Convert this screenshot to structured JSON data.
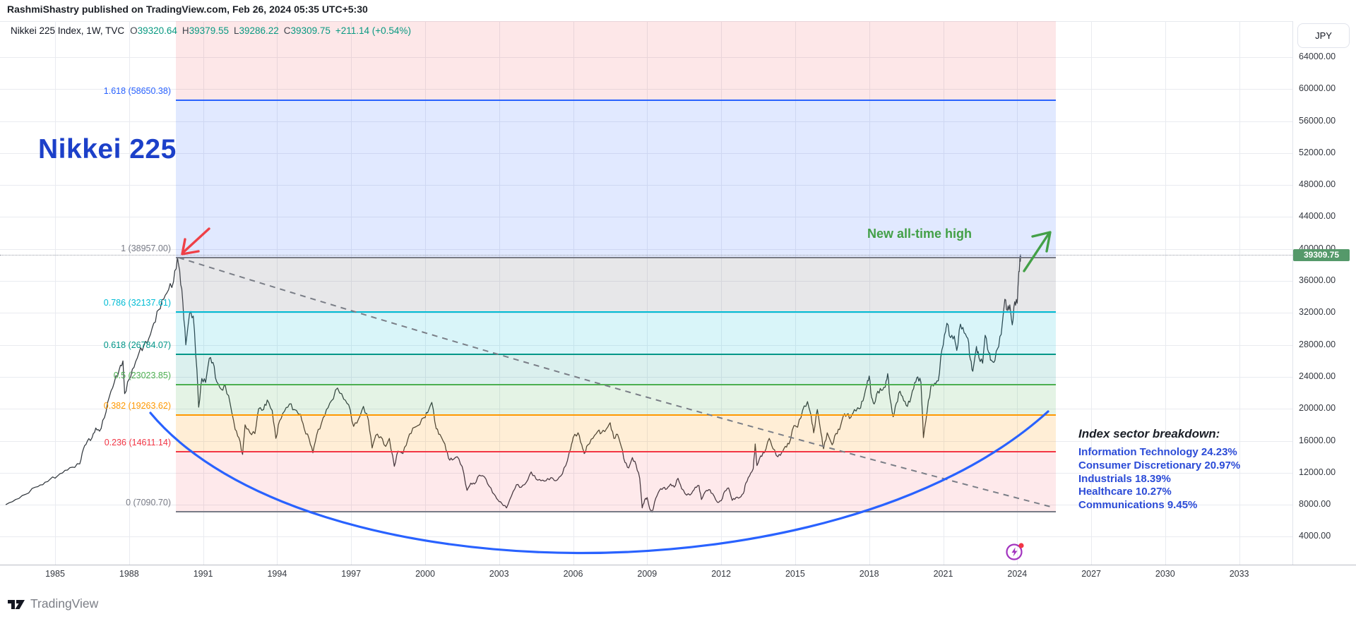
{
  "publish_bar": {
    "text": "RashmiShastry published on TradingView.com, Feb 26, 2024 05:35 UTC+5:30"
  },
  "legend": {
    "display": "Nikkei 225 Index, 1W, TVC",
    "ohlc": [
      {
        "k": "O",
        "v": "39320.64"
      },
      {
        "k": "H",
        "v": "39379.55"
      },
      {
        "k": "L",
        "v": "39286.22"
      },
      {
        "k": "C",
        "v": "39309.75"
      }
    ],
    "change": "+211.14 (+0.54%)",
    "up_color": "#089981"
  },
  "annotations": {
    "big_title": {
      "text": "Nikkei 225",
      "color": "#1c40c9"
    },
    "new_ath": {
      "text": "New all-time high",
      "color": "#43a047"
    },
    "sector_block": {
      "title": "Index sector breakdown:",
      "items": [
        "Information Technology 24.23%",
        "Consumer Discretionary 20.97%",
        "Industrials 18.39%",
        "Healthcare 10.27%",
        "Communications 9.45%"
      ],
      "color": "#2b4bd7"
    }
  },
  "price_scale": {
    "currency": "JPY",
    "last_price": "39309.75",
    "last_price_bg": "#55996a"
  },
  "footer": {
    "brand": "TradingView"
  },
  "chart_data": {
    "type": "line",
    "title": "Nikkei 225 Index, 1W, TVC",
    "x_axis": {
      "unit": "year",
      "ticks": [
        1985,
        1988,
        1991,
        1994,
        1997,
        2000,
        2003,
        2006,
        2009,
        2012,
        2015,
        2018,
        2021,
        2024,
        2027,
        2030,
        2033
      ]
    },
    "y_axis": {
      "unit": "JPY",
      "ticks": [
        64000,
        60000,
        56000,
        52000,
        48000,
        44000,
        40000,
        36000,
        32000,
        28000,
        24000,
        20000,
        16000,
        12000,
        8000,
        4000
      ],
      "visible_range": [
        450,
        68500
      ],
      "grid": true
    },
    "last_bar": {
      "open": 39320.64,
      "high": 39379.55,
      "low": 39286.22,
      "close": 39309.75,
      "change": 211.14,
      "change_pct": 0.54
    },
    "current_price_line": 39309.75,
    "fib_retracement": {
      "from": {
        "year": 1989.96,
        "price": 38957.0
      },
      "to": {
        "year": 2008.8,
        "price": 7090.7
      },
      "extends_to_year": 2025.6,
      "levels": [
        {
          "ratio": "1.618",
          "price": 58650.38,
          "label": "1.618 (58650.38)",
          "color": "#2962ff"
        },
        {
          "ratio": "1",
          "price": 38957.0,
          "label": "1 (38957.00)",
          "color": "#787b86"
        },
        {
          "ratio": "0.786",
          "price": 32137.61,
          "label": "0.786 (32137.61)",
          "color": "#00bcd4"
        },
        {
          "ratio": "0.618",
          "price": 26784.07,
          "label": "0.618 (26784.07)",
          "color": "#009688"
        },
        {
          "ratio": "0.5",
          "price": 23023.85,
          "label": "0.5 (23023.85)",
          "color": "#4caf50"
        },
        {
          "ratio": "0.382",
          "price": 19263.62,
          "label": "0.382 (19263.62)",
          "color": "#ff9800"
        },
        {
          "ratio": "0.236",
          "price": 14611.14,
          "label": "0.236 (14611.14)",
          "color": "#f23645"
        },
        {
          "ratio": "0",
          "price": 7090.7,
          "label": "0 (7090.70)",
          "color": "#787b86"
        }
      ],
      "band_colors": [
        "rgba(242,54,69,0.12)",
        "rgba(41,98,255,0.14)",
        "rgba(120,123,134,0.18)",
        "rgba(0,188,212,0.15)",
        "rgba(0,150,136,0.14)",
        "rgba(76,175,80,0.15)",
        "rgba(255,152,0,0.16)",
        "rgba(242,54,69,0.11)"
      ]
    },
    "series": [
      {
        "name": "Nikkei 225 weekly",
        "points": [
          [
            1983.0,
            8000
          ],
          [
            1983.4,
            8650
          ],
          [
            1983.8,
            9300
          ],
          [
            1984.2,
            10200
          ],
          [
            1984.5,
            10500
          ],
          [
            1984.8,
            11200
          ],
          [
            1985.1,
            11600
          ],
          [
            1985.4,
            12300
          ],
          [
            1985.7,
            12700
          ],
          [
            1986.0,
            13100
          ],
          [
            1986.15,
            15000
          ],
          [
            1986.3,
            15900
          ],
          [
            1986.5,
            16400
          ],
          [
            1986.65,
            17600
          ],
          [
            1986.8,
            17200
          ],
          [
            1987.0,
            18900
          ],
          [
            1987.2,
            21500
          ],
          [
            1987.4,
            23300
          ],
          [
            1987.6,
            24900
          ],
          [
            1987.75,
            26000
          ],
          [
            1987.82,
            21900
          ],
          [
            1988.0,
            23700
          ],
          [
            1988.2,
            25200
          ],
          [
            1988.4,
            27000
          ],
          [
            1988.6,
            27900
          ],
          [
            1988.8,
            28800
          ],
          [
            1989.0,
            30700
          ],
          [
            1989.2,
            32400
          ],
          [
            1989.4,
            33700
          ],
          [
            1989.6,
            34900
          ],
          [
            1989.8,
            35900
          ],
          [
            1989.96,
            38957
          ],
          [
            1990.05,
            37300
          ],
          [
            1990.18,
            33300
          ],
          [
            1990.3,
            28000
          ],
          [
            1990.45,
            31900
          ],
          [
            1990.6,
            31600
          ],
          [
            1990.75,
            24900
          ],
          [
            1990.82,
            20200
          ],
          [
            1990.95,
            23800
          ],
          [
            1991.1,
            23300
          ],
          [
            1991.25,
            26300
          ],
          [
            1991.4,
            25800
          ],
          [
            1991.55,
            23400
          ],
          [
            1991.75,
            22400
          ],
          [
            1991.9,
            22900
          ],
          [
            1992.1,
            20600
          ],
          [
            1992.3,
            17400
          ],
          [
            1992.45,
            16400
          ],
          [
            1992.6,
            14300
          ],
          [
            1992.7,
            18000
          ],
          [
            1992.9,
            17000
          ],
          [
            1993.1,
            16900
          ],
          [
            1993.25,
            20000
          ],
          [
            1993.45,
            19900
          ],
          [
            1993.6,
            21100
          ],
          [
            1993.8,
            19800
          ],
          [
            1993.95,
            16300
          ],
          [
            1994.1,
            18500
          ],
          [
            1994.3,
            19700
          ],
          [
            1994.5,
            20600
          ],
          [
            1994.7,
            19900
          ],
          [
            1994.95,
            19300
          ],
          [
            1995.1,
            17500
          ],
          [
            1995.3,
            16200
          ],
          [
            1995.45,
            14500
          ],
          [
            1995.6,
            16700
          ],
          [
            1995.8,
            18200
          ],
          [
            1996.0,
            19900
          ],
          [
            1996.2,
            21000
          ],
          [
            1996.45,
            22600
          ],
          [
            1996.7,
            21200
          ],
          [
            1996.9,
            20500
          ],
          [
            1997.1,
            17800
          ],
          [
            1997.3,
            18700
          ],
          [
            1997.5,
            20300
          ],
          [
            1997.7,
            18600
          ],
          [
            1997.85,
            15100
          ],
          [
            1998.0,
            16700
          ],
          [
            1998.2,
            16500
          ],
          [
            1998.4,
            15300
          ],
          [
            1998.55,
            16300
          ],
          [
            1998.75,
            12800
          ],
          [
            1998.9,
            14700
          ],
          [
            1999.1,
            14400
          ],
          [
            1999.3,
            16200
          ],
          [
            1999.5,
            17600
          ],
          [
            1999.7,
            17900
          ],
          [
            1999.95,
            18900
          ],
          [
            2000.1,
            19500
          ],
          [
            2000.27,
            20800
          ],
          [
            2000.45,
            17500
          ],
          [
            2000.6,
            16800
          ],
          [
            2000.8,
            15600
          ],
          [
            2000.95,
            13800
          ],
          [
            2001.1,
            13600
          ],
          [
            2001.3,
            14000
          ],
          [
            2001.5,
            12800
          ],
          [
            2001.7,
            9800
          ],
          [
            2001.85,
            10700
          ],
          [
            2002.0,
            10600
          ],
          [
            2002.2,
            11700
          ],
          [
            2002.4,
            11500
          ],
          [
            2002.6,
            10300
          ],
          [
            2002.8,
            9300
          ],
          [
            2002.95,
            8600
          ],
          [
            2003.1,
            8200
          ],
          [
            2003.3,
            7600
          ],
          [
            2003.5,
            9100
          ],
          [
            2003.7,
            10500
          ],
          [
            2003.9,
            10200
          ],
          [
            2004.1,
            10800
          ],
          [
            2004.3,
            12100
          ],
          [
            2004.5,
            11200
          ],
          [
            2004.7,
            11000
          ],
          [
            2004.9,
            11000
          ],
          [
            2005.1,
            11400
          ],
          [
            2005.3,
            11000
          ],
          [
            2005.5,
            11600
          ],
          [
            2005.7,
            12900
          ],
          [
            2005.9,
            15000
          ],
          [
            2006.0,
            16400
          ],
          [
            2006.2,
            17000
          ],
          [
            2006.35,
            15500
          ],
          [
            2006.45,
            14400
          ],
          [
            2006.6,
            15500
          ],
          [
            2006.8,
            16300
          ],
          [
            2007.0,
            17200
          ],
          [
            2007.15,
            17000
          ],
          [
            2007.35,
            17500
          ],
          [
            2007.5,
            18260
          ],
          [
            2007.65,
            16300
          ],
          [
            2007.8,
            16800
          ],
          [
            2007.95,
            15300
          ],
          [
            2008.1,
            13300
          ],
          [
            2008.25,
            12600
          ],
          [
            2008.4,
            13900
          ],
          [
            2008.55,
            13000
          ],
          [
            2008.7,
            11300
          ],
          [
            2008.8,
            7600
          ],
          [
            2008.9,
            8600
          ],
          [
            2009.0,
            8900
          ],
          [
            2009.1,
            7550
          ],
          [
            2009.2,
            7060
          ],
          [
            2009.35,
            8800
          ],
          [
            2009.5,
            9800
          ],
          [
            2009.65,
            10100
          ],
          [
            2009.8,
            10000
          ],
          [
            2009.95,
            10600
          ],
          [
            2010.1,
            10200
          ],
          [
            2010.25,
            11300
          ],
          [
            2010.4,
            10000
          ],
          [
            2010.6,
            9200
          ],
          [
            2010.8,
            9400
          ],
          [
            2010.95,
            10200
          ],
          [
            2011.1,
            10400
          ],
          [
            2011.2,
            8650
          ],
          [
            2011.35,
            9600
          ],
          [
            2011.5,
            9900
          ],
          [
            2011.65,
            9400
          ],
          [
            2011.85,
            8300
          ],
          [
            2012.0,
            8500
          ],
          [
            2012.15,
            9700
          ],
          [
            2012.3,
            10100
          ],
          [
            2012.45,
            8550
          ],
          [
            2012.6,
            8900
          ],
          [
            2012.75,
            8900
          ],
          [
            2012.9,
            9400
          ],
          [
            2013.0,
            10700
          ],
          [
            2013.15,
            11600
          ],
          [
            2013.3,
            12500
          ],
          [
            2013.38,
            15600
          ],
          [
            2013.45,
            12900
          ],
          [
            2013.6,
            14100
          ],
          [
            2013.75,
            14500
          ],
          [
            2013.95,
            16300
          ],
          [
            2014.1,
            15000
          ],
          [
            2014.3,
            14000
          ],
          [
            2014.45,
            14500
          ],
          [
            2014.6,
            15300
          ],
          [
            2014.75,
            15600
          ],
          [
            2014.95,
            17900
          ],
          [
            2015.1,
            17700
          ],
          [
            2015.3,
            19800
          ],
          [
            2015.5,
            20900
          ],
          [
            2015.65,
            19100
          ],
          [
            2015.75,
            17000
          ],
          [
            2015.9,
            19900
          ],
          [
            2016.05,
            16900
          ],
          [
            2016.15,
            15000
          ],
          [
            2016.3,
            17000
          ],
          [
            2016.5,
            15500
          ],
          [
            2016.65,
            16900
          ],
          [
            2016.8,
            17400
          ],
          [
            2016.95,
            19100
          ],
          [
            2017.1,
            19300
          ],
          [
            2017.25,
            18900
          ],
          [
            2017.4,
            19900
          ],
          [
            2017.6,
            20000
          ],
          [
            2017.75,
            21000
          ],
          [
            2017.9,
            22900
          ],
          [
            2018.0,
            24100
          ],
          [
            2018.1,
            21400
          ],
          [
            2018.2,
            20600
          ],
          [
            2018.35,
            22200
          ],
          [
            2018.5,
            22300
          ],
          [
            2018.65,
            22700
          ],
          [
            2018.75,
            24400
          ],
          [
            2018.85,
            21200
          ],
          [
            2018.97,
            19000
          ],
          [
            2019.1,
            20700
          ],
          [
            2019.25,
            22200
          ],
          [
            2019.4,
            21000
          ],
          [
            2019.55,
            20300
          ],
          [
            2019.7,
            21500
          ],
          [
            2019.85,
            23300
          ],
          [
            2019.97,
            24000
          ],
          [
            2020.1,
            23300
          ],
          [
            2020.2,
            16400
          ],
          [
            2020.35,
            19700
          ],
          [
            2020.5,
            22800
          ],
          [
            2020.65,
            23200
          ],
          [
            2020.8,
            23500
          ],
          [
            2020.95,
            27400
          ],
          [
            2021.1,
            29700
          ],
          [
            2021.15,
            30700
          ],
          [
            2021.3,
            28900
          ],
          [
            2021.45,
            29100
          ],
          [
            2021.55,
            27300
          ],
          [
            2021.7,
            30600
          ],
          [
            2021.85,
            29500
          ],
          [
            2022.0,
            28800
          ],
          [
            2022.1,
            26200
          ],
          [
            2022.2,
            24700
          ],
          [
            2022.35,
            27800
          ],
          [
            2022.45,
            26400
          ],
          [
            2022.6,
            25700
          ],
          [
            2022.7,
            29200
          ],
          [
            2022.85,
            27000
          ],
          [
            2022.95,
            26100
          ],
          [
            2023.05,
            25800
          ],
          [
            2023.2,
            27500
          ],
          [
            2023.35,
            29300
          ],
          [
            2023.5,
            33700
          ],
          [
            2023.6,
            32300
          ],
          [
            2023.7,
            33000
          ],
          [
            2023.8,
            30500
          ],
          [
            2023.9,
            33400
          ],
          [
            2024.0,
            33200
          ],
          [
            2024.05,
            36100
          ],
          [
            2024.1,
            38200
          ],
          [
            2024.14,
            39309.75
          ]
        ]
      }
    ]
  }
}
